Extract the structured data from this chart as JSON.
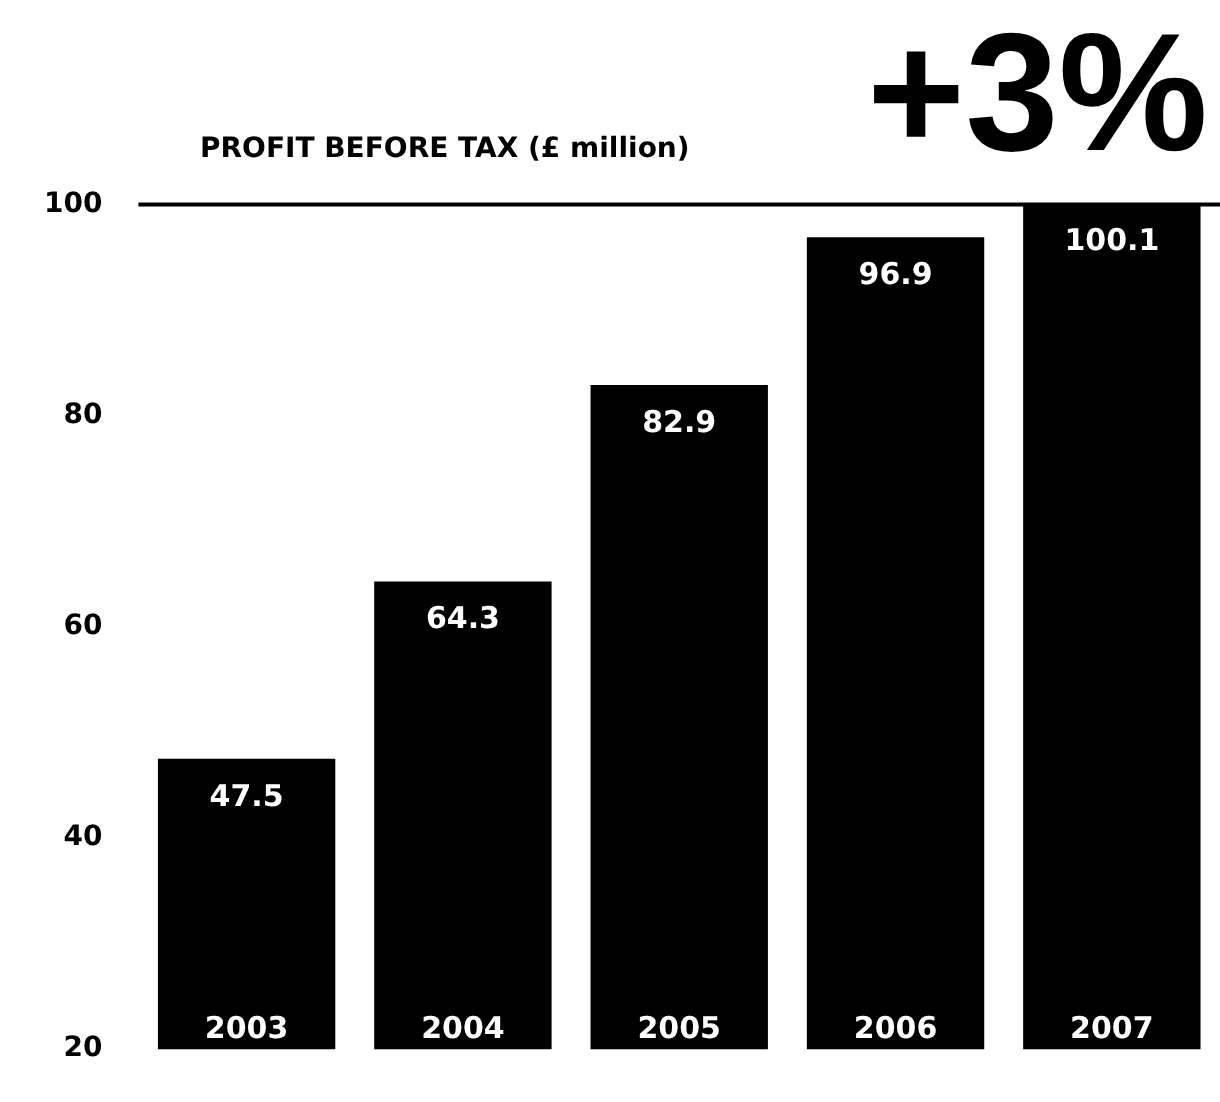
{
  "chart_data": {
    "type": "bar",
    "title": "PROFIT BEFORE TAX (£ million)",
    "annotations": [
      "+3%"
    ],
    "categories": [
      "2003",
      "2004",
      "2005",
      "2006",
      "2007"
    ],
    "values": [
      47.5,
      64.3,
      82.9,
      96.9,
      100.1
    ],
    "color": "#000000",
    "ylim": [
      20,
      101
    ],
    "yticks": [
      20,
      40,
      60,
      80,
      100
    ],
    "grid": false,
    "data_labels": true,
    "ref_lines": [
      {
        "axis": "y",
        "value": 100,
        "color": "#000000"
      }
    ]
  }
}
